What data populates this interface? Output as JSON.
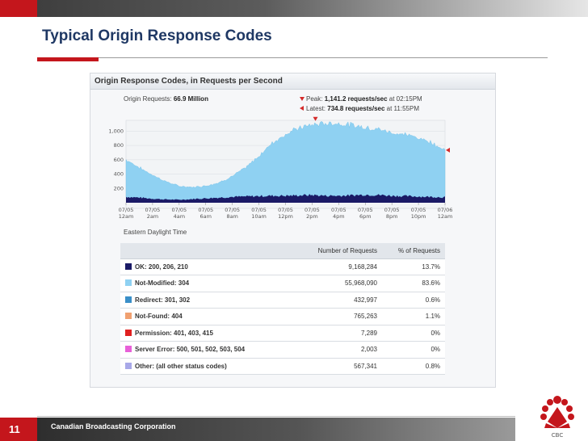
{
  "slide": {
    "title": "Typical Origin Response Codes",
    "page_number": "11",
    "footer": "Canadian Broadcasting Corporation",
    "logo_text": "CBC",
    "colors": {
      "accent_red": "#c4161c",
      "title_blue": "#1f3864"
    }
  },
  "panel": {
    "title": "Origin Response Codes, in Requests per Second",
    "origin_requests_label": "Origin Requests:",
    "origin_requests_value": "66.9 Million",
    "peak_label": "Peak:",
    "peak_value": "1,141.2 requests/sec",
    "peak_time": "at 02:15PM",
    "latest_label": "Latest:",
    "latest_value": "734.8 requests/sec",
    "latest_time": "at 11:55PM",
    "timezone": "Eastern Daylight Time"
  },
  "chart_data": {
    "type": "area",
    "title": "Origin Response Codes, in Requests per Second",
    "xlabel": "Eastern Daylight Time",
    "ylabel": "",
    "ylim": [
      0,
      1150
    ],
    "y_ticks": [
      "1,000",
      "800",
      "600",
      "400",
      "200"
    ],
    "x_ticks": [
      {
        "date": "07/05",
        "time": "12am"
      },
      {
        "date": "07/05",
        "time": "2am"
      },
      {
        "date": "07/05",
        "time": "4am"
      },
      {
        "date": "07/05",
        "time": "6am"
      },
      {
        "date": "07/05",
        "time": "8am"
      },
      {
        "date": "07/05",
        "time": "10am"
      },
      {
        "date": "07/05",
        "time": "12pm"
      },
      {
        "date": "07/05",
        "time": "2pm"
      },
      {
        "date": "07/05",
        "time": "4pm"
      },
      {
        "date": "07/05",
        "time": "6pm"
      },
      {
        "date": "07/05",
        "time": "8pm"
      },
      {
        "date": "07/05",
        "time": "10pm"
      },
      {
        "date": "07/06",
        "time": "12am"
      }
    ],
    "x_hours": [
      0,
      1,
      2,
      3,
      4,
      5,
      6,
      7,
      8,
      9,
      10,
      11,
      12,
      13,
      14,
      15,
      16,
      17,
      18,
      19,
      20,
      21,
      22,
      23,
      24
    ],
    "series": [
      {
        "name": "OK: 200, 206, 210",
        "color": "#1a1a66",
        "values": [
          80,
          70,
          55,
          45,
          40,
          50,
          60,
          70,
          80,
          85,
          90,
          95,
          95,
          100,
          105,
          95,
          95,
          100,
          110,
          105,
          95,
          90,
          85,
          80,
          75
        ]
      },
      {
        "name": "Not-Modified: 304",
        "color": "#8fd1f2",
        "values": [
          520,
          420,
          330,
          250,
          190,
          165,
          175,
          210,
          290,
          400,
          560,
          740,
          860,
          940,
          980,
          1010,
          1010,
          980,
          940,
          920,
          880,
          860,
          820,
          760,
          660
        ]
      }
    ],
    "peak": {
      "hour": 14.25,
      "value": 1141.2
    },
    "latest": {
      "hour": 23.9,
      "value": 734.8
    },
    "legend_table": {
      "headers": [
        "",
        "Number of Requests",
        "% of Requests"
      ],
      "rows": [
        {
          "label": "OK: 200, 206, 210",
          "color": "#1a1a66",
          "requests": "9,168,284",
          "percent": "13.7%"
        },
        {
          "label": "Not-Modified: 304",
          "color": "#8fd1f2",
          "requests": "55,968,090",
          "percent": "83.6%"
        },
        {
          "label": "Redirect: 301, 302",
          "color": "#3a8fc8",
          "requests": "432,997",
          "percent": "0.6%"
        },
        {
          "label": "Not-Found: 404",
          "color": "#f0a070",
          "requests": "765,263",
          "percent": "1.1%"
        },
        {
          "label": "Permission: 401, 403, 415",
          "color": "#e02020",
          "requests": "7,289",
          "percent": "0%"
        },
        {
          "label": "Server Error: 500, 501, 502, 503, 504",
          "color": "#e860d8",
          "requests": "2,003",
          "percent": "0%"
        },
        {
          "label": "Other: (all other status codes)",
          "color": "#a8a8e8",
          "requests": "567,341",
          "percent": "0.8%"
        }
      ]
    }
  }
}
